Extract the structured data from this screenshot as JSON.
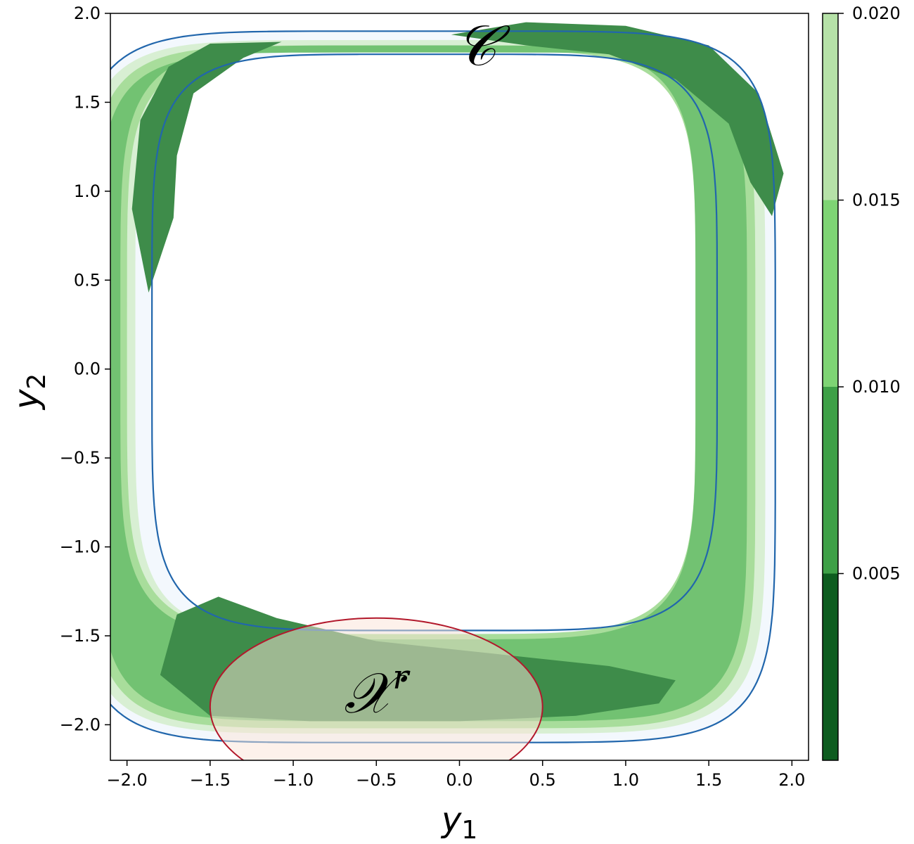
{
  "chart_data": {
    "type": "contour",
    "xlabel": {
      "base": "y",
      "sub": "1"
    },
    "ylabel": {
      "base": "y",
      "sub": "2"
    },
    "xlim": [
      -2.1,
      2.1
    ],
    "ylim": [
      -2.2,
      2.0
    ],
    "xticks": [
      -2.0,
      -1.5,
      -1.0,
      -0.5,
      0.0,
      0.5,
      1.0,
      1.5,
      2.0
    ],
    "xtick_labels": [
      "−2.0",
      "−1.5",
      "−1.0",
      "−0.5",
      "0.0",
      "0.5",
      "1.0",
      "1.5",
      "2.0"
    ],
    "yticks": [
      -2.0,
      -1.5,
      -1.0,
      -0.5,
      0.0,
      0.5,
      1.0,
      1.5,
      2.0
    ],
    "ytick_labels": [
      "−2.0",
      "−1.5",
      "−1.0",
      "−0.5",
      "0.0",
      "0.5",
      "1.0",
      "1.5",
      "2.0"
    ],
    "colorbar": {
      "levels": [
        0.0,
        0.005,
        0.01,
        0.015,
        0.02
      ],
      "tick_labels": [
        "0.005",
        "0.010",
        "0.015",
        "0.020"
      ],
      "colors": [
        "#0d5c1f",
        "#3ea047",
        "#7ed474",
        "#b6e2a8"
      ]
    },
    "fill_colors": {
      "outer_pale": "#f3f8fd",
      "lightest": "#d8efd3",
      "light": "#a8dd9b",
      "mid": "#72c272",
      "dark": "#3e8c4a"
    },
    "boundary_curves": {
      "color": "#2166ac",
      "outer": {
        "cx": -0.2,
        "cy": -0.1,
        "rx": 2.1,
        "ry": 2.0,
        "p": 6.5
      },
      "inner": {
        "cx": -0.15,
        "cy": 0.15,
        "rx": 1.7,
        "ry": 1.62,
        "p": 5.5
      }
    },
    "target_ellipse": {
      "cx": -0.5,
      "cy": -1.9,
      "rx": 1.0,
      "ry": 0.5,
      "stroke": "#b2182b",
      "fill": "#fbe4d8"
    },
    "annotations": [
      {
        "text": "𝒞",
        "x": 0.1,
        "y": 1.82
      },
      {
        "text": "𝒳",
        "sup": "r",
        "x": -0.5,
        "y": -1.82
      }
    ]
  }
}
